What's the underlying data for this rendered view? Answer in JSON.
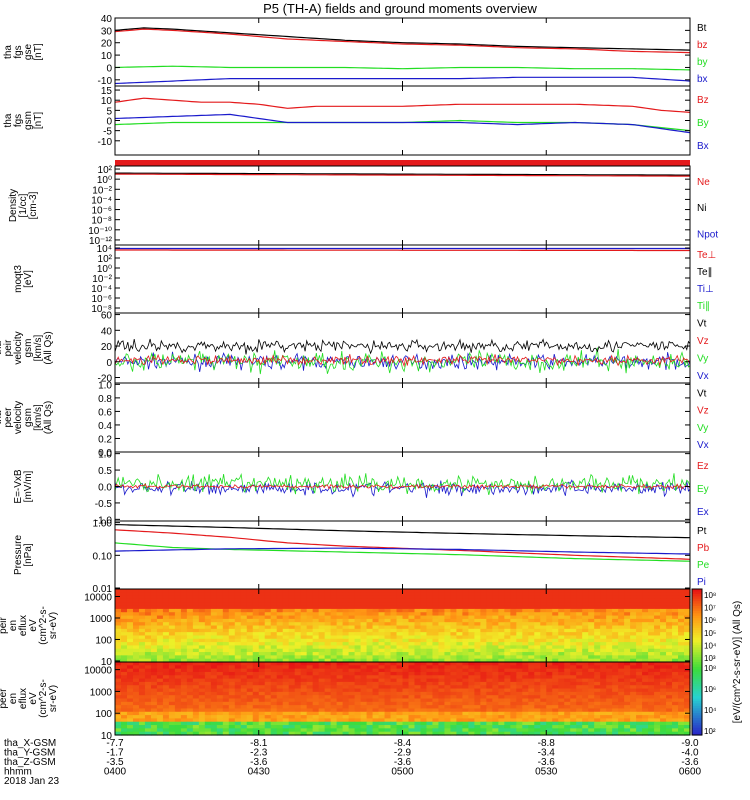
{
  "title": "P5 (TH-A) fields and ground moments overview",
  "colors": {
    "black": "#000000",
    "red": "#e41a1c",
    "green": "#22dd22",
    "blue": "#1a1acc"
  },
  "chart_data": [
    {
      "type": "line",
      "ylabel": [
        "tha",
        "fgs",
        "gse",
        "[nT]"
      ],
      "ylim": [
        -15,
        40
      ],
      "yticks": [
        {
          "v": 40,
          "t": "40"
        },
        {
          "v": 30,
          "t": "30"
        },
        {
          "v": 20,
          "t": "20"
        },
        {
          "v": 10,
          "t": "10"
        },
        {
          "v": 0,
          "t": "0"
        },
        {
          "v": -10,
          "t": "-10"
        }
      ],
      "legend": [
        {
          "t": "Bt",
          "c": "black"
        },
        {
          "t": "bz",
          "c": "red"
        },
        {
          "t": "by",
          "c": "green"
        },
        {
          "t": "bx",
          "c": "blue"
        }
      ],
      "series": [
        {
          "name": "Bt",
          "color": "black",
          "x": [
            0,
            0.05,
            0.1,
            0.2,
            0.3,
            0.4,
            0.5,
            0.6,
            0.7,
            0.8,
            0.9,
            1.0
          ],
          "y": [
            30,
            32,
            31,
            28,
            25,
            22,
            20,
            19,
            17,
            16,
            15,
            14
          ]
        },
        {
          "name": "bz",
          "color": "red",
          "x": [
            0,
            0.05,
            0.1,
            0.2,
            0.3,
            0.4,
            0.5,
            0.6,
            0.7,
            0.8,
            0.9,
            1.0
          ],
          "y": [
            29,
            31,
            30,
            27,
            23,
            21,
            19,
            18,
            16,
            15,
            13,
            12
          ]
        },
        {
          "name": "by",
          "color": "green",
          "x": [
            0,
            0.1,
            0.2,
            0.3,
            0.4,
            0.5,
            0.6,
            0.7,
            0.8,
            0.9,
            1.0
          ],
          "y": [
            0,
            1,
            0,
            0,
            0,
            -1,
            0,
            0,
            -1,
            -1,
            -2
          ]
        },
        {
          "name": "bx",
          "color": "blue",
          "x": [
            0,
            0.05,
            0.1,
            0.2,
            0.3,
            0.4,
            0.5,
            0.6,
            0.7,
            0.8,
            0.9,
            1.0
          ],
          "y": [
            -13,
            -12,
            -11,
            -9,
            -9,
            -9,
            -9,
            -9,
            -8,
            -8,
            -8,
            -11
          ]
        }
      ]
    },
    {
      "type": "line",
      "ylabel": [
        "tha",
        "fgs",
        "gsm",
        "[nT]"
      ],
      "ylim": [
        -17,
        17
      ],
      "yticks": [
        {
          "v": 15,
          "t": "15"
        },
        {
          "v": 10,
          "t": "10"
        },
        {
          "v": 5,
          "t": "5"
        },
        {
          "v": 0,
          "t": "0"
        },
        {
          "v": -5,
          "t": "-5"
        },
        {
          "v": -10,
          "t": "-10"
        }
      ],
      "legend": [
        {
          "t": "Bz",
          "c": "red"
        },
        {
          "t": "By",
          "c": "green"
        },
        {
          "t": "Bx",
          "c": "blue"
        }
      ],
      "series": [
        {
          "name": "Bz",
          "color": "red",
          "x": [
            0,
            0.05,
            0.1,
            0.15,
            0.2,
            0.25,
            0.3,
            0.35,
            0.4,
            0.5,
            0.6,
            0.7,
            0.8,
            0.9,
            0.95,
            1.0
          ],
          "y": [
            9,
            11,
            10,
            9,
            9,
            8,
            6,
            7,
            7,
            7,
            8,
            8,
            8,
            7,
            5,
            4
          ]
        },
        {
          "name": "By",
          "color": "green",
          "x": [
            0,
            0.1,
            0.2,
            0.3,
            0.4,
            0.5,
            0.6,
            0.7,
            0.8,
            0.9,
            1.0
          ],
          "y": [
            -2,
            -1,
            -1,
            -1,
            -1,
            -1,
            0,
            -1,
            -1,
            -2,
            -5
          ]
        },
        {
          "name": "Bx",
          "color": "blue",
          "x": [
            0,
            0.1,
            0.2,
            0.25,
            0.3,
            0.4,
            0.5,
            0.6,
            0.7,
            0.8,
            0.9,
            0.95,
            1.0
          ],
          "y": [
            1,
            2,
            3,
            1,
            -1,
            -1,
            -1,
            -1,
            -2,
            -1,
            -2,
            -4,
            -6
          ]
        }
      ]
    },
    {
      "type": "bar",
      "ylabel": [],
      "note": "full-width red status bar"
    },
    {
      "type": "line",
      "log_y": true,
      "ylabel": [
        "Density",
        "[1/cc]",
        "[cm-3]"
      ],
      "yticks": [
        {
          "v": 2,
          "t": "10²"
        },
        {
          "v": 0,
          "t": "10⁰"
        },
        {
          "v": -2,
          "t": "10⁻²"
        },
        {
          "v": -4,
          "t": "10⁻⁴"
        },
        {
          "v": -6,
          "t": "10⁻⁶"
        },
        {
          "v": -8,
          "t": "10⁻⁸"
        },
        {
          "v": -10,
          "t": "10⁻¹⁰"
        },
        {
          "v": -12,
          "t": "10⁻¹²"
        }
      ],
      "ylim": [
        -13,
        2.6
      ],
      "legend": [
        {
          "t": "Ne",
          "c": "red"
        },
        {
          "t": "Ni",
          "c": "black"
        },
        {
          "t": "Npot",
          "c": "blue"
        }
      ],
      "series": [
        {
          "name": "Ni",
          "color": "black",
          "x": [
            0,
            1
          ],
          "y": [
            1.2,
            0.8
          ]
        },
        {
          "name": "Ne",
          "color": "red",
          "x": [
            0,
            1
          ],
          "y": [
            1.0,
            0.6
          ]
        }
      ]
    },
    {
      "type": "line",
      "log_y": true,
      "ylabel": [
        "moqt3",
        "[eV]"
      ],
      "yticks": [
        {
          "v": 4,
          "t": "10⁴"
        },
        {
          "v": 2,
          "t": "10²"
        },
        {
          "v": 0,
          "t": "10⁰"
        },
        {
          "v": -2,
          "t": "10⁻²"
        },
        {
          "v": -4,
          "t": "10⁻⁴"
        },
        {
          "v": -6,
          "t": "10⁻⁶"
        },
        {
          "v": -8,
          "t": "10⁻⁸"
        }
      ],
      "ylim": [
        -9,
        4.6
      ],
      "legend": [
        {
          "t": "Te⊥",
          "c": "red"
        },
        {
          "t": "Te∥",
          "c": "black"
        },
        {
          "t": "Ti⊥",
          "c": "blue"
        },
        {
          "t": "Ti∥",
          "c": "green"
        }
      ],
      "series": [
        {
          "name": "Te",
          "color": "red",
          "x": [
            0,
            1
          ],
          "y": [
            3.6,
            3.5
          ]
        },
        {
          "name": "Ti",
          "color": "blue",
          "x": [
            0,
            1
          ],
          "y": [
            3.9,
            3.9
          ]
        }
      ]
    },
    {
      "type": "line",
      "noisy": true,
      "ylabel": [
        "tha",
        "peir",
        "velocity",
        "gsm",
        "[km/s]",
        "(All Qs)"
      ],
      "ylim": [
        -27,
        62
      ],
      "yticks": [
        {
          "v": 60,
          "t": "60"
        },
        {
          "v": 40,
          "t": "40"
        },
        {
          "v": 20,
          "t": "20"
        },
        {
          "v": 0,
          "t": "0"
        },
        {
          "v": -20,
          "t": "-20"
        }
      ],
      "legend": [
        {
          "t": "Vt",
          "c": "black"
        },
        {
          "t": "Vz",
          "c": "red"
        },
        {
          "t": "Vy",
          "c": "green"
        },
        {
          "t": "Vx",
          "c": "blue"
        }
      ],
      "series": [
        {
          "name": "Vx",
          "color": "blue",
          "center": 0,
          "amp": 9
        },
        {
          "name": "Vy",
          "color": "green",
          "center": 0,
          "amp": 13
        },
        {
          "name": "Vt",
          "color": "black",
          "center": 20,
          "amp": 8
        },
        {
          "name": "Vz",
          "color": "red",
          "center": 2,
          "amp": 6
        }
      ]
    },
    {
      "type": "line",
      "ylabel": [
        "tha",
        "peer",
        "velocity",
        "gsm",
        "[km/s]",
        "(All Qs)"
      ],
      "ylim": [
        0,
        1.02
      ],
      "yticks": [
        {
          "v": 1.0,
          "t": "1.0"
        },
        {
          "v": 0.8,
          "t": "0.8"
        },
        {
          "v": 0.6,
          "t": "0.6"
        },
        {
          "v": 0.4,
          "t": "0.4"
        },
        {
          "v": 0.2,
          "t": "0.2"
        },
        {
          "v": 0.0,
          "t": "0.0"
        }
      ],
      "legend": [
        {
          "t": "Vt",
          "c": "black"
        },
        {
          "t": "Vz",
          "c": "red"
        },
        {
          "t": "Vy",
          "c": "green"
        },
        {
          "t": "Vx",
          "c": "blue"
        }
      ],
      "series": []
    },
    {
      "type": "line",
      "noisy": true,
      "ylabel": [
        "E=-VxB",
        "[mV/m]"
      ],
      "ylim": [
        -1.05,
        1.05
      ],
      "yticks": [
        {
          "v": 1.0,
          "t": "1.0"
        },
        {
          "v": 0.5,
          "t": "0.5"
        },
        {
          "v": 0.0,
          "t": "0.0"
        },
        {
          "v": -0.5,
          "t": "-0.5"
        },
        {
          "v": -1.0,
          "t": "-1.0"
        }
      ],
      "legend": [
        {
          "t": "Ez",
          "c": "red"
        },
        {
          "t": "Ey",
          "c": "green"
        },
        {
          "t": "Ex",
          "c": "blue"
        }
      ],
      "series": [
        {
          "name": "Ex",
          "color": "blue",
          "center": -0.05,
          "amp": 0.22
        },
        {
          "name": "Ey",
          "color": "green",
          "center": 0.08,
          "amp": 0.28
        },
        {
          "name": "Ez",
          "color": "red",
          "center": 0.0,
          "amp": 0.06
        }
      ]
    },
    {
      "type": "line",
      "log_y": true,
      "ylabel": [
        "Pressure",
        "[nPa]"
      ],
      "ylim": [
        -2.03,
        0.05
      ],
      "yticks": [
        {
          "v": 0,
          "t": "1.00"
        },
        {
          "v": -1,
          "t": "0.10"
        },
        {
          "v": -2,
          "t": "0.01"
        }
      ],
      "legend": [
        {
          "t": "Pt",
          "c": "black"
        },
        {
          "t": "Pb",
          "c": "red"
        },
        {
          "t": "Pe",
          "c": "green"
        },
        {
          "t": "Pi",
          "c": "blue"
        }
      ],
      "series": [
        {
          "name": "Pt",
          "color": "black",
          "x": [
            0,
            0.2,
            0.4,
            0.6,
            0.8,
            1.0
          ],
          "y": [
            -0.06,
            -0.15,
            -0.25,
            -0.33,
            -0.4,
            -0.46
          ]
        },
        {
          "name": "Pb",
          "color": "red",
          "x": [
            0,
            0.1,
            0.2,
            0.3,
            0.4,
            0.6,
            0.8,
            1.0
          ],
          "y": [
            -0.22,
            -0.32,
            -0.45,
            -0.62,
            -0.72,
            -0.85,
            -1.0,
            -1.12
          ]
        },
        {
          "name": "Pe",
          "color": "green",
          "x": [
            0,
            0.1,
            0.2,
            0.4,
            0.6,
            0.8,
            1.0
          ],
          "y": [
            -0.62,
            -0.76,
            -0.82,
            -0.9,
            -0.98,
            -1.1,
            -1.18
          ]
        },
        {
          "name": "Pi",
          "color": "blue",
          "x": [
            0,
            0.2,
            0.4,
            0.6,
            0.8,
            1.0
          ],
          "y": [
            -0.87,
            -0.8,
            -0.78,
            -0.82,
            -0.9,
            -0.96
          ]
        }
      ]
    },
    {
      "type": "heatmap",
      "ylabel": [
        "tha",
        "peir",
        "en",
        "eflux",
        "eV",
        "(cm^2-s-",
        "sr-eV)"
      ],
      "log_y": true,
      "ylim": [
        0.95,
        4.35
      ],
      "yticks": [
        {
          "v": 4,
          "t": "10000"
        },
        {
          "v": 3,
          "t": "1000"
        },
        {
          "v": 2,
          "t": "100"
        },
        {
          "v": 1,
          "t": "10"
        }
      ],
      "variant": "ion"
    },
    {
      "type": "heatmap",
      "ylabel": [
        "tha",
        "peer",
        "en",
        "eflux",
        "eV",
        "(cm^2-s-",
        "sr-eV)"
      ],
      "log_y": true,
      "ylim": [
        1.0,
        4.35
      ],
      "yticks": [
        {
          "v": 4,
          "t": "10000"
        },
        {
          "v": 3,
          "t": "1000"
        },
        {
          "v": 2,
          "t": "100"
        },
        {
          "v": 1,
          "t": "10"
        }
      ],
      "variant": "electron"
    }
  ],
  "colorbar": {
    "label": "[eV/(cm^2-s-sr-eV)] (All Qs)",
    "ticks_top": [
      "10⁸",
      "10⁷",
      "10⁶",
      "10⁵",
      "10⁴",
      "10³"
    ],
    "ticks_bottom": [
      "10⁸",
      "10⁶",
      "10⁴",
      "10²"
    ]
  },
  "xaxis": {
    "rows": [
      {
        "label": "tha_X-GSM",
        "values": [
          "-7.7",
          "-8.1",
          "-8.4",
          "-8.8",
          "-9.0"
        ]
      },
      {
        "label": "tha_Y-GSM",
        "values": [
          "-1.7",
          "-2.3",
          "-2.9",
          "-3.4",
          "-4.0"
        ]
      },
      {
        "label": "tha_Z-GSM",
        "values": [
          "-3.5",
          "-3.6",
          "-3.6",
          "-3.6",
          "-3.6"
        ]
      },
      {
        "label": "hhmm",
        "values": [
          "0400",
          "0430",
          "0500",
          "0530",
          "0600"
        ]
      }
    ],
    "date": "2018 Jan 23"
  }
}
